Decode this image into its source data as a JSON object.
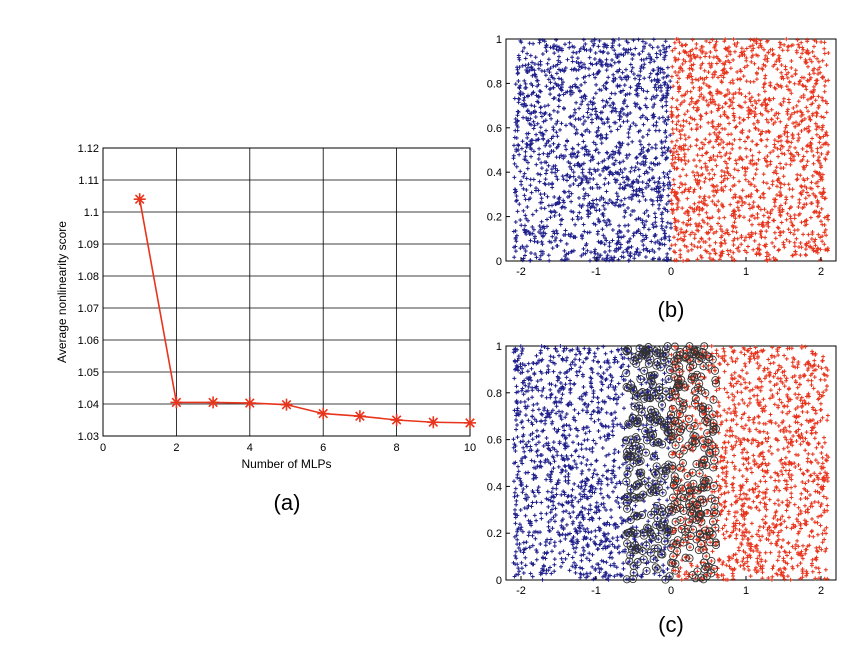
{
  "captions": {
    "a": "(a)",
    "b": "(b)",
    "c": "(c)"
  },
  "colors": {
    "red": "#e8341c",
    "blue": "#1f1f8c",
    "overlap_circle": "#333333"
  },
  "chart_data": [
    {
      "id": "a",
      "type": "line",
      "xlabel": "Number of MLPs",
      "ylabel": "Average nonlinearity score",
      "xlim": [
        0,
        10
      ],
      "ylim": [
        1.03,
        1.12
      ],
      "xticks": [
        "0",
        "2",
        "4",
        "6",
        "8",
        "10"
      ],
      "yticks": [
        "1.03",
        "1.04",
        "1.05",
        "1.06",
        "1.07",
        "1.08",
        "1.09",
        "1.1",
        "1.11",
        "1.12"
      ],
      "grid": true,
      "marker": "asterisk",
      "series": [
        {
          "x": [
            1,
            2,
            3,
            4,
            5,
            6,
            7,
            8,
            9,
            10
          ],
          "y": [
            1.104,
            1.0405,
            1.0405,
            1.0403,
            1.0398,
            1.037,
            1.0362,
            1.035,
            1.0343,
            1.0341
          ]
        }
      ]
    },
    {
      "id": "b",
      "type": "scatter",
      "xlim": [
        -2.2,
        2.2
      ],
      "ylim": [
        0,
        1
      ],
      "xticks": [
        "-2",
        "-1",
        "0",
        "1",
        "2"
      ],
      "yticks": [
        "0",
        "0.2",
        "0.4",
        "0.6",
        "0.8",
        "1"
      ],
      "marker": "plus",
      "classes": [
        {
          "color": "blue",
          "x_range": [
            -2.1,
            0
          ],
          "approx_points": 1500
        },
        {
          "color": "red",
          "x_range": [
            0,
            2.1
          ],
          "approx_points": 1500
        }
      ]
    },
    {
      "id": "c",
      "type": "scatter",
      "xlim": [
        -2.2,
        2.2
      ],
      "ylim": [
        0,
        1
      ],
      "xticks": [
        "-2",
        "-1",
        "0",
        "1",
        "2"
      ],
      "yticks": [
        "0",
        "0.2",
        "0.4",
        "0.6",
        "0.8",
        "1"
      ],
      "marker": "plus",
      "classes": [
        {
          "color": "blue",
          "x_range": [
            -2.1,
            0
          ],
          "approx_points": 1500
        },
        {
          "color": "red",
          "x_range": [
            0,
            2.1
          ],
          "approx_points": 1500
        }
      ],
      "circled_region": {
        "x_range": [
          -0.6,
          0.6
        ],
        "marker": "circle"
      }
    }
  ]
}
